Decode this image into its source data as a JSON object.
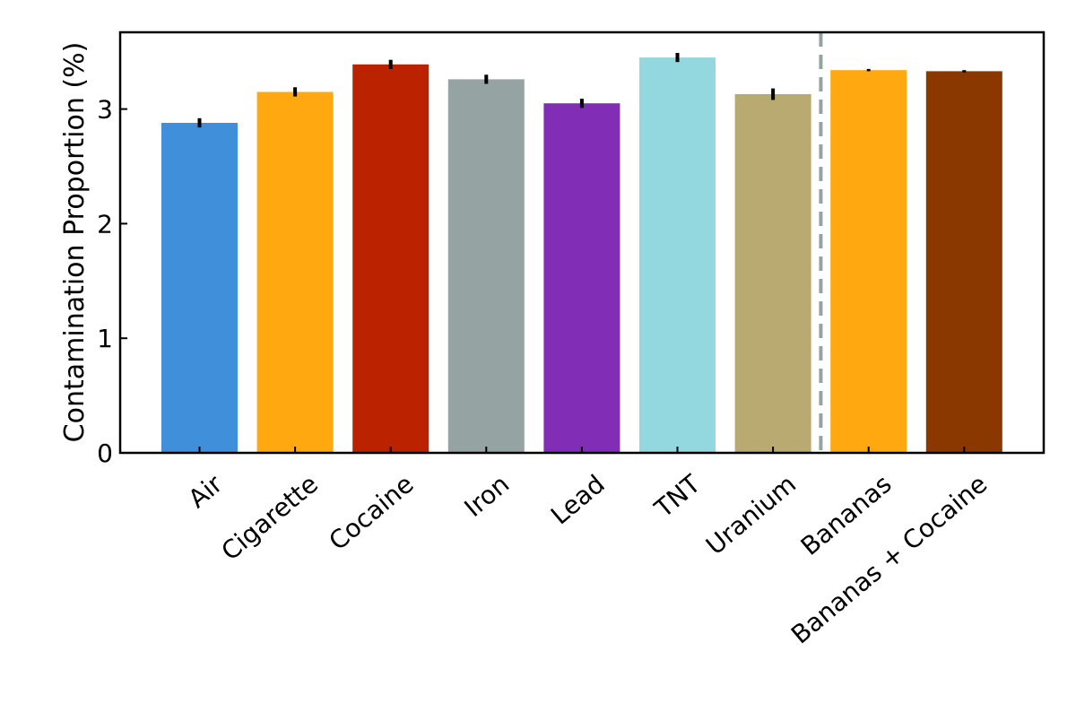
{
  "chart_data": {
    "type": "bar",
    "title": "",
    "xlabel": "",
    "ylabel": "Contamination Proportion (%)",
    "ylim": [
      0,
      3.67
    ],
    "yticks": [
      0,
      1,
      2,
      3
    ],
    "grid": false,
    "legend": "none",
    "categories": [
      "Air",
      "Cigarette",
      "Cocaine",
      "Iron",
      "Lead",
      "TNT",
      "Uranium",
      "Bananas",
      "Bananas + Cocaine"
    ],
    "values": [
      2.88,
      3.15,
      3.39,
      3.26,
      3.05,
      3.45,
      3.13,
      3.34,
      3.33
    ],
    "errors": [
      0.04,
      0.04,
      0.04,
      0.04,
      0.04,
      0.04,
      0.05,
      0.01,
      0.01
    ],
    "colors": [
      "#3f8fda",
      "#ffa810",
      "#bb2200",
      "#95a4a3",
      "#812db5",
      "#93d8de",
      "#b8aa70",
      "#ffa810",
      "#8b3800"
    ],
    "divider": {
      "between": [
        "Uranium",
        "Bananas"
      ],
      "style": "dashed",
      "color": "#95a4a3"
    }
  }
}
